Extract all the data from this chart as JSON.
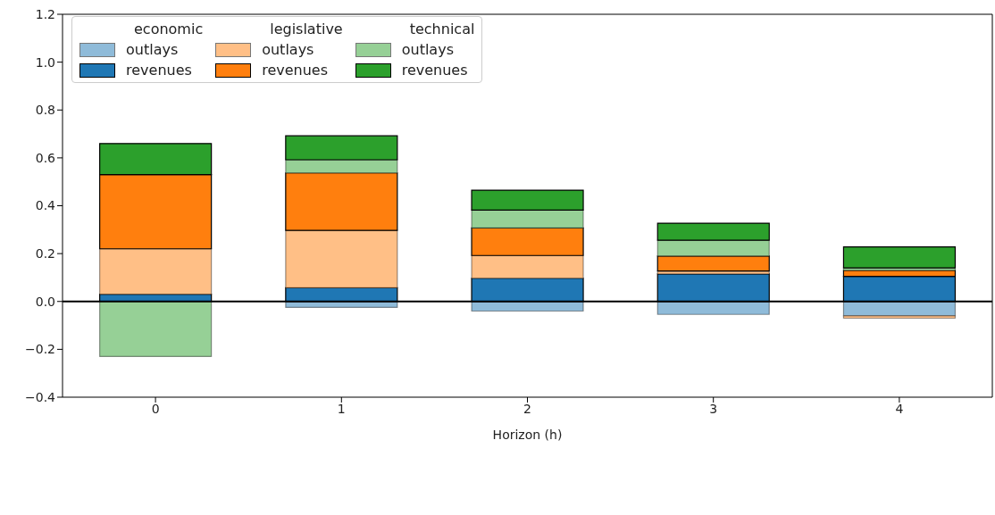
{
  "chart_data": {
    "type": "bar",
    "stacked": true,
    "xlabel": "Horizon (h)",
    "categories": [
      "0",
      "1",
      "2",
      "3",
      "4"
    ],
    "ylim": [
      -0.4,
      1.2
    ],
    "yticks": [
      {
        "value": -0.4,
        "label": "−0.4"
      },
      {
        "value": -0.2,
        "label": "−0.2"
      },
      {
        "value": 0,
        "label": "0.0"
      },
      {
        "value": 0.2,
        "label": "0.2"
      },
      {
        "value": 0.4,
        "label": "0.4"
      },
      {
        "value": 0.6,
        "label": "0.6"
      },
      {
        "value": 0.8,
        "label": "0.8"
      },
      {
        "value": 1,
        "label": "1.0"
      },
      {
        "value": 1.2,
        "label": "1.2"
      }
    ],
    "grid": false,
    "legend": "top left",
    "annotations": [
      "economic",
      "legislative",
      "technical"
    ],
    "ref_lines": [
      {
        "axis": "y",
        "value": 0,
        "color": "#000000"
      }
    ],
    "series": [
      {
        "name": "outlays",
        "color": "#8fbbd9",
        "values": [
          0,
          -0.025,
          -0.04,
          -0.054,
          -0.06
        ]
      },
      {
        "name": "revenues",
        "color": "#1f77b4",
        "values": [
          0.03,
          0.057,
          0.097,
          0.115,
          0.105
        ]
      },
      {
        "name": "outlays",
        "color": "#ffbf86",
        "values": [
          0.19,
          0.24,
          0.095,
          0.012,
          -0.01
        ]
      },
      {
        "name": "revenues",
        "color": "#ff7f0e",
        "values": [
          0.31,
          0.24,
          0.115,
          0.063,
          0.025
        ]
      },
      {
        "name": "outlays",
        "color": "#96d096",
        "values": [
          -0.23,
          0.055,
          0.075,
          0.066,
          0.01
        ]
      },
      {
        "name": "revenues",
        "color": "#2ca02c",
        "values": [
          0.13,
          0.1,
          0.083,
          0.071,
          0.088
        ]
      }
    ]
  }
}
